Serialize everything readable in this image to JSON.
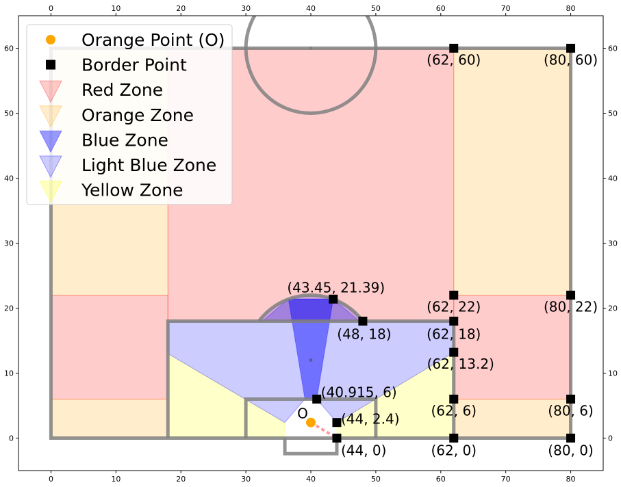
{
  "chart_data": {
    "type": "scatter",
    "title": "",
    "xlabel": "",
    "ylabel": "",
    "xlim": [
      -5,
      85
    ],
    "ylim": [
      -5,
      65
    ],
    "xticks": [
      0,
      10,
      20,
      30,
      40,
      50,
      60,
      70,
      80
    ],
    "yticks": [
      0,
      10,
      20,
      30,
      40,
      50,
      60
    ],
    "grid": false,
    "legend_position": "top-left",
    "colors": {
      "orange_point": "#FFA500",
      "border_point": "#000000",
      "red_zone": "#FF0000",
      "orange_zone": "#FFA500",
      "blue_zone": "#0000FF",
      "light_blue_zone": "#6666FF",
      "yellow_zone": "#FFFF66",
      "pitch_line": "#808080",
      "dashed_line": "#FF9999"
    },
    "legend": [
      {
        "label": "Orange Point (O)",
        "marker": "circle",
        "color": "#FFA500"
      },
      {
        "label": "Border Point",
        "marker": "square",
        "color": "#000000"
      },
      {
        "label": "Red Zone",
        "marker": "triangle",
        "color": "#FF0000",
        "alpha": 0.2
      },
      {
        "label": "Orange Zone",
        "marker": "triangle",
        "color": "#FFA500",
        "alpha": 0.2
      },
      {
        "label": "Blue Zone",
        "marker": "triangle",
        "color": "#0000FF",
        "alpha": 0.4
      },
      {
        "label": "Light Blue Zone",
        "marker": "triangle",
        "color": "#0000FF",
        "alpha": 0.2
      },
      {
        "label": "Yellow Zone",
        "marker": "triangle",
        "color": "#FFFF00",
        "alpha": 0.25
      }
    ],
    "orange_point": {
      "x": 40,
      "y": 2.4,
      "label": "O"
    },
    "border_points": [
      {
        "x": 62,
        "y": 60,
        "label": "(62, 60)"
      },
      {
        "x": 80,
        "y": 60,
        "label": "(80, 60)"
      },
      {
        "x": 43.45,
        "y": 21.39,
        "label": "(43.45, 21.39)"
      },
      {
        "x": 62,
        "y": 22,
        "label": "(62, 22)"
      },
      {
        "x": 80,
        "y": 22,
        "label": "(80, 22)"
      },
      {
        "x": 48,
        "y": 18,
        "label": "(48, 18)"
      },
      {
        "x": 62,
        "y": 18,
        "label": "(62, 18)"
      },
      {
        "x": 62,
        "y": 13.2,
        "label": "(62, 13.2)"
      },
      {
        "x": 40.915,
        "y": 6,
        "label": "(40.915, 6)"
      },
      {
        "x": 62,
        "y": 6,
        "label": "(62, 6)"
      },
      {
        "x": 80,
        "y": 6,
        "label": "(80, 6)"
      },
      {
        "x": 44,
        "y": 2.4,
        "label": "(44, 2.4)"
      },
      {
        "x": 44,
        "y": 0,
        "label": "(44, 0)"
      },
      {
        "x": 62,
        "y": 0,
        "label": "(62, 0)"
      },
      {
        "x": 80,
        "y": 0,
        "label": "(80, 0)"
      }
    ],
    "zones": {
      "orange": [
        [
          [
            62,
            0
          ],
          [
            80,
            0
          ],
          [
            80,
            6
          ],
          [
            62,
            6
          ]
        ],
        [
          [
            62,
            22
          ],
          [
            80,
            22
          ],
          [
            80,
            60
          ],
          [
            62,
            60
          ]
        ],
        [
          [
            0,
            0
          ],
          [
            18,
            0
          ],
          [
            18,
            6
          ],
          [
            0,
            6
          ]
        ],
        [
          [
            0,
            22
          ],
          [
            18,
            22
          ],
          [
            18,
            60
          ],
          [
            0,
            60
          ]
        ]
      ],
      "red": [
        [
          [
            62,
            6
          ],
          [
            80,
            6
          ],
          [
            80,
            22
          ],
          [
            62,
            22
          ]
        ],
        [
          [
            18,
            18
          ],
          [
            62,
            18
          ],
          [
            62,
            60
          ],
          [
            18,
            60
          ]
        ],
        [
          [
            0,
            6
          ],
          [
            18,
            6
          ],
          [
            18,
            22
          ],
          [
            0,
            22
          ]
        ]
      ],
      "yellow": [
        [
          [
            18,
            13
          ],
          [
            36,
            2.4
          ],
          [
            36,
            0
          ],
          [
            18,
            0
          ]
        ],
        [
          [
            44,
            2.4
          ],
          [
            62,
            13.2
          ],
          [
            62,
            0
          ],
          [
            44,
            0
          ]
        ]
      ],
      "light_blue": [
        [
          [
            18,
            18
          ],
          [
            32.55,
            18
          ],
          [
            36.55,
            21.39
          ],
          [
            43.45,
            21.39
          ],
          [
            47.45,
            18
          ],
          [
            62,
            18
          ],
          [
            62,
            13.2
          ],
          [
            44,
            2.4
          ],
          [
            40.915,
            6
          ],
          [
            39.085,
            6
          ],
          [
            36,
            2.4
          ],
          [
            18,
            13
          ]
        ]
      ],
      "blue": [
        [
          [
            40.915,
            6
          ],
          [
            43.45,
            21.39
          ],
          [
            36.55,
            21.39
          ],
          [
            39.085,
            6
          ]
        ]
      ]
    },
    "pitch": {
      "outline": [
        [
          0,
          0
        ],
        [
          80,
          0
        ],
        [
          80,
          60
        ],
        [
          0,
          60
        ]
      ],
      "penalty_box": [
        [
          18,
          0
        ],
        [
          18,
          18
        ],
        [
          62,
          18
        ],
        [
          62,
          0
        ]
      ],
      "six_yard_box": [
        [
          30,
          0
        ],
        [
          30,
          6
        ],
        [
          50,
          6
        ],
        [
          50,
          0
        ]
      ],
      "goal": [
        [
          36,
          0
        ],
        [
          36,
          -2.4
        ],
        [
          44,
          -2.4
        ],
        [
          44,
          0
        ]
      ],
      "center_circle": {
        "cx": 40,
        "cy": 60,
        "r": 10
      },
      "center_spot": {
        "x": 40,
        "y": 60
      },
      "penalty_spot": {
        "x": 40,
        "y": 12
      },
      "penalty_arc": {
        "cx": 40,
        "cy": 12,
        "r": 10
      },
      "dashed_line": [
        [
          40,
          2.4
        ],
        [
          44,
          0
        ]
      ]
    }
  }
}
